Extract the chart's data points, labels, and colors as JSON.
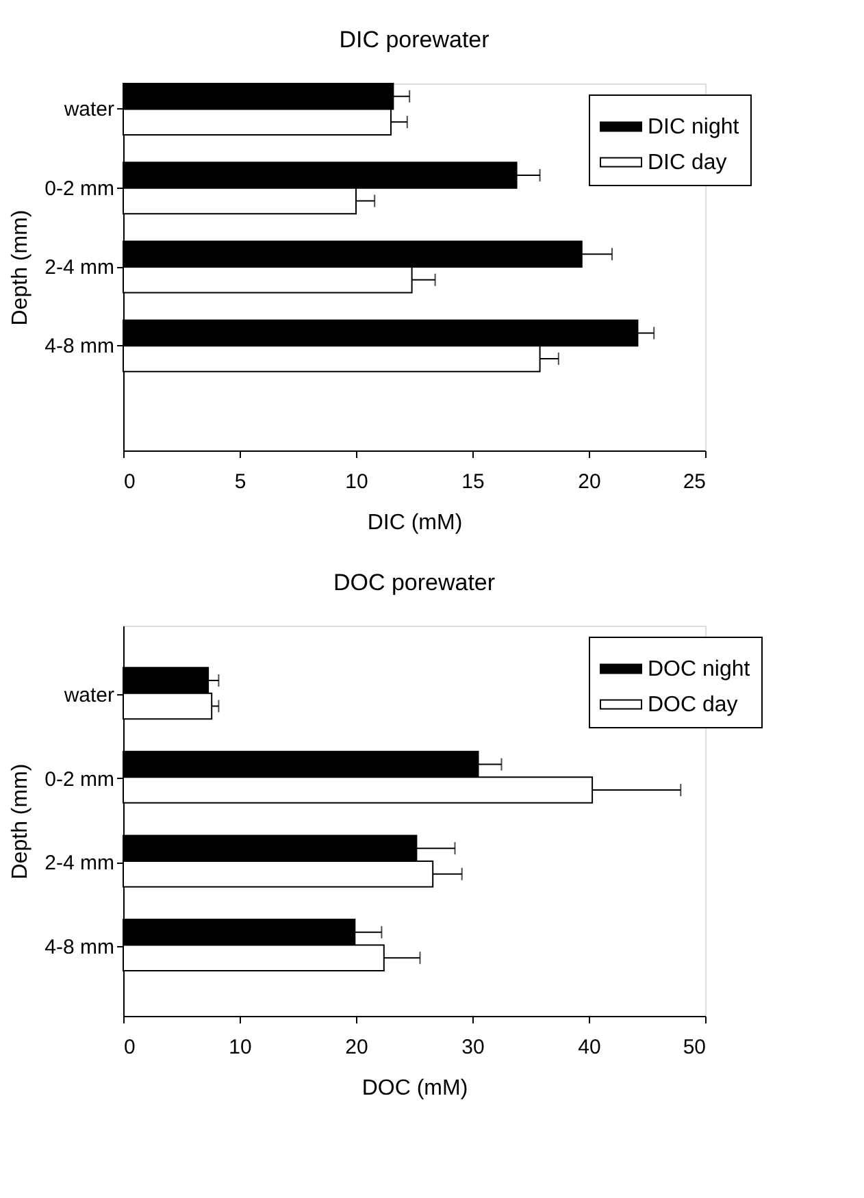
{
  "chart_data": [
    {
      "type": "bar",
      "orientation": "horizontal",
      "title": "DIC porewater",
      "xlabel": "DIC (mM)",
      "ylabel": "Depth (mm)",
      "categories": [
        "water",
        "0-2 mm",
        "2-4 mm",
        "4-8 mm"
      ],
      "series": [
        {
          "name": "DIC night",
          "color": "#000000",
          "values": [
            11.6,
            16.9,
            19.7,
            22.1
          ],
          "errors": [
            [
              11.6,
              12.3
            ],
            [
              16.9,
              17.9
            ],
            [
              19.7,
              21.0
            ],
            [
              22.1,
              22.8
            ]
          ]
        },
        {
          "name": "DIC day",
          "color": "#ffffff",
          "values": [
            11.5,
            10.0,
            12.4,
            17.9
          ],
          "errors": [
            [
              11.5,
              12.2
            ],
            [
              10.0,
              10.8
            ],
            [
              12.4,
              13.4
            ],
            [
              17.9,
              18.7
            ]
          ]
        }
      ],
      "xlim": [
        0,
        25
      ],
      "xticks": [
        0,
        5,
        10,
        15,
        20,
        25
      ],
      "grid": false,
      "legend": "top right"
    },
    {
      "type": "bar",
      "orientation": "horizontal",
      "title": "DOC porewater",
      "xlabel": "DOC (mM)",
      "ylabel": "Depth (mm)",
      "categories": [
        "water",
        "0-2 mm",
        "2-4 mm",
        "4-8 mm"
      ],
      "series": [
        {
          "name": "DOC night",
          "color": "#000000",
          "values": [
            7.3,
            30.5,
            25.2,
            19.9
          ],
          "errors": [
            [
              7.3,
              8.2
            ],
            [
              30.5,
              32.5
            ],
            [
              25.2,
              28.5
            ],
            [
              19.9,
              22.2
            ]
          ]
        },
        {
          "name": "DOC day",
          "color": "#ffffff",
          "values": [
            7.6,
            40.3,
            26.6,
            22.4
          ],
          "errors": [
            [
              7.6,
              8.2
            ],
            [
              40.3,
              47.9
            ],
            [
              26.6,
              29.1
            ],
            [
              22.4,
              25.5
            ]
          ]
        }
      ],
      "xlim": [
        0,
        50
      ],
      "xticks": [
        0,
        10,
        20,
        30,
        40,
        50
      ],
      "grid": false,
      "legend": "top right"
    }
  ]
}
